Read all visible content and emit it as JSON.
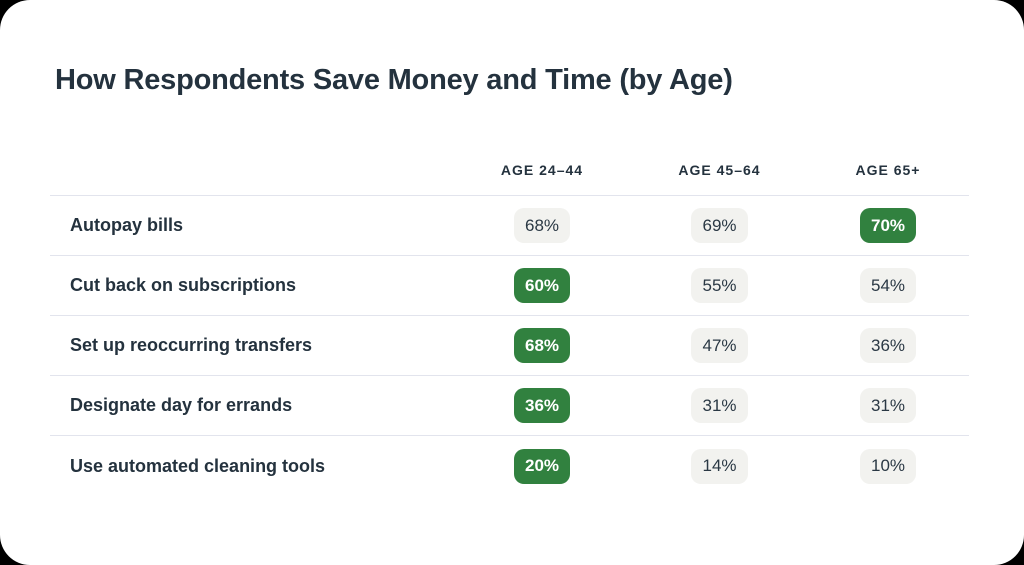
{
  "title": "How Respondents Save Money and Time (by Age)",
  "table": {
    "columns": [
      {
        "label": "AGE 24–44"
      },
      {
        "label": "AGE 45–64"
      },
      {
        "label": "AGE 65+"
      }
    ],
    "rows": [
      {
        "label": "Autopay bills",
        "values": [
          {
            "text": "68%",
            "highlight": false
          },
          {
            "text": "69%",
            "highlight": false
          },
          {
            "text": "70%",
            "highlight": true
          }
        ]
      },
      {
        "label": "Cut back on subscriptions",
        "values": [
          {
            "text": "60%",
            "highlight": true
          },
          {
            "text": "55%",
            "highlight": false
          },
          {
            "text": "54%",
            "highlight": false
          }
        ]
      },
      {
        "label": "Set up reoccurring transfers",
        "values": [
          {
            "text": "68%",
            "highlight": true
          },
          {
            "text": "47%",
            "highlight": false
          },
          {
            "text": "36%",
            "highlight": false
          }
        ]
      },
      {
        "label": "Designate day for errands",
        "values": [
          {
            "text": "36%",
            "highlight": true
          },
          {
            "text": "31%",
            "highlight": false
          },
          {
            "text": "31%",
            "highlight": false
          }
        ]
      },
      {
        "label": "Use automated cleaning tools",
        "values": [
          {
            "text": "20%",
            "highlight": true
          },
          {
            "text": "14%",
            "highlight": false
          },
          {
            "text": "10%",
            "highlight": false
          }
        ]
      }
    ]
  },
  "chart_data": {
    "type": "table",
    "title": "How Respondents Save Money and Time (by Age)",
    "columns": [
      "AGE 24–44",
      "AGE 45–64",
      "AGE 65+"
    ],
    "row_labels": [
      "Autopay bills",
      "Cut back on subscriptions",
      "Set up reoccurring transfers",
      "Designate day for errands",
      "Use automated cleaning tools"
    ],
    "values_pct": [
      [
        68,
        69,
        70
      ],
      [
        60,
        55,
        54
      ],
      [
        68,
        47,
        36
      ],
      [
        36,
        31,
        31
      ],
      [
        20,
        14,
        10
      ]
    ],
    "highlighted_cells_row_col": [
      [
        0,
        2
      ],
      [
        1,
        0
      ],
      [
        2,
        0
      ],
      [
        3,
        0
      ],
      [
        4,
        0
      ]
    ],
    "legend": "green badge = highlighted top value for that row"
  },
  "colors": {
    "outside_bg": "#000000",
    "card_bg": "#ffffff",
    "text_dark": "#24323E",
    "divider": "#E2E4ED",
    "badge_bg": "#F2F2EF",
    "accent_green": "#31813F",
    "badge_text": "#2A3844"
  }
}
